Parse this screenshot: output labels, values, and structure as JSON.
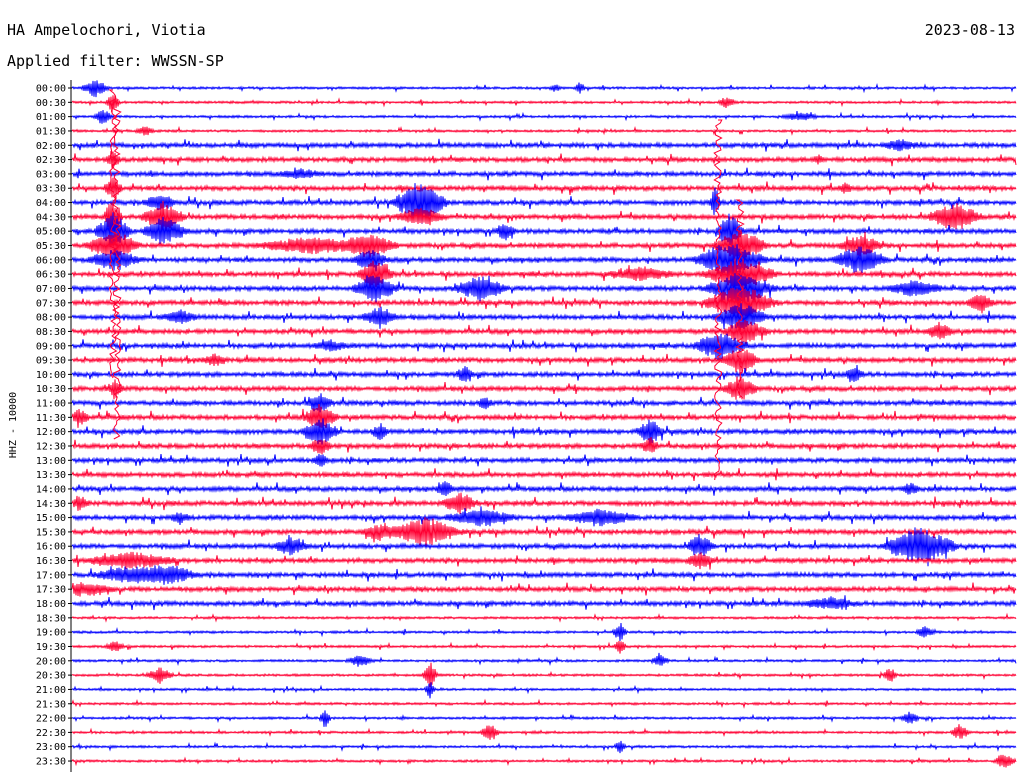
{
  "header": {
    "station": "HA Ampelochori, Viotia",
    "date": "2023-08-13",
    "filter_label": "Applied filter: WWSSN-SP"
  },
  "colors": {
    "trace_a": "#0000ff",
    "trace_b": "#ff0033",
    "axis": "#000000",
    "background": "#ffffff"
  },
  "chart_data": {
    "type": "line",
    "title": "HA Ampelochori, Viotia",
    "ylabel": "HHZ - 10000",
    "row_labels": [
      "00:00",
      "00:30",
      "01:00",
      "01:30",
      "02:00",
      "02:30",
      "03:00",
      "03:30",
      "04:00",
      "04:30",
      "05:00",
      "05:30",
      "06:00",
      "06:30",
      "07:00",
      "07:30",
      "08:00",
      "08:30",
      "09:00",
      "09:30",
      "10:00",
      "10:30",
      "11:00",
      "11:30",
      "12:00",
      "12:30",
      "13:00",
      "13:30",
      "14:00",
      "14:30",
      "15:00",
      "15:30",
      "16:00",
      "16:30",
      "17:00",
      "17:30",
      "18:00",
      "18:30",
      "19:00",
      "19:30",
      "20:00",
      "20:30",
      "21:00",
      "21:30",
      "22:00",
      "22:30",
      "23:00",
      "23:30"
    ],
    "row_color_cycle": [
      "blue",
      "red"
    ],
    "grid": false,
    "notes": "Helicorder: 48 traces, 30 minutes each, alternating blue/red"
  }
}
